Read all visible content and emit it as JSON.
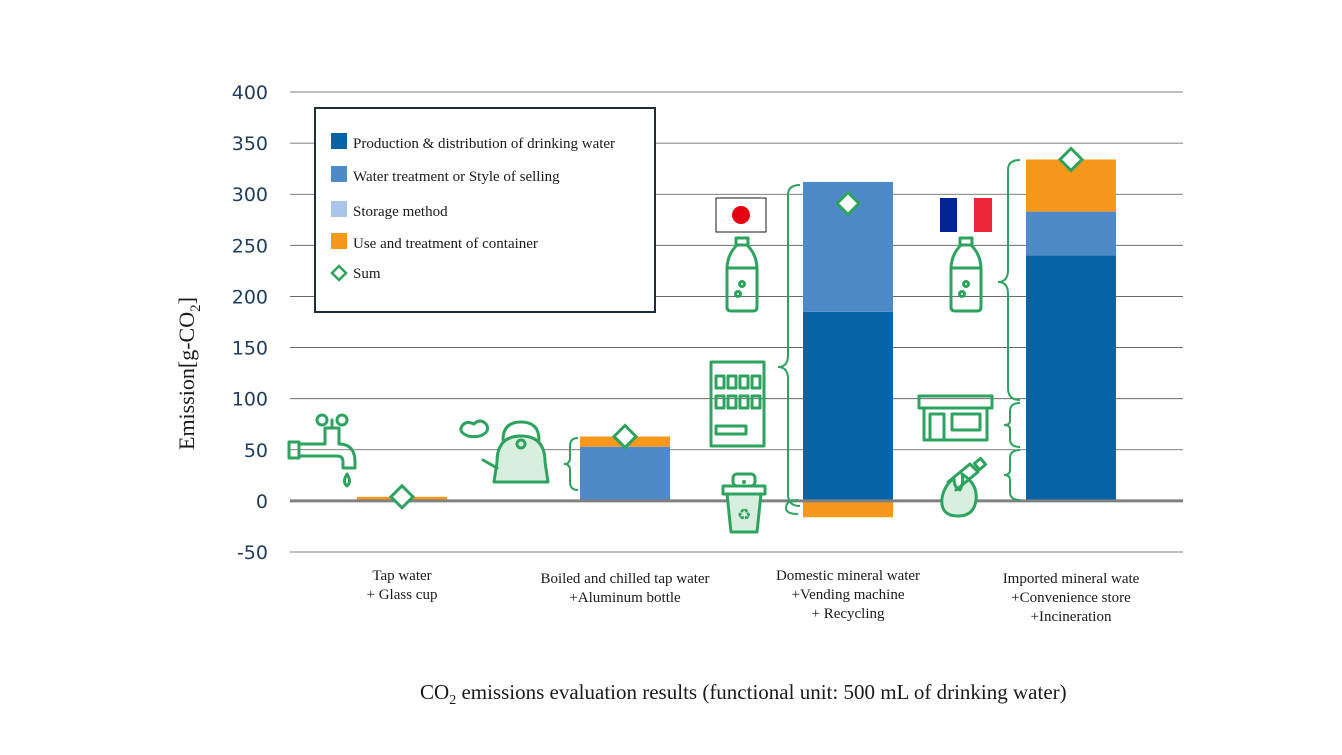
{
  "chart_data": {
    "type": "bar",
    "stacked": true,
    "categories": [
      [
        "Tap water",
        "+ Glass cup"
      ],
      [
        "Boiled and chilled tap water",
        "+Aluminum bottle"
      ],
      [
        "Domestic mineral water",
        "+Vending machine",
        "+  Recycling"
      ],
      [
        "Imported mineral wate",
        "+Convenience store",
        "+Incineration"
      ]
    ],
    "series": [
      {
        "name": "Production & distribution of drinking water",
        "color": "#0663a6",
        "values": [
          0,
          0,
          185,
          240
        ]
      },
      {
        "name": "Water treatment or Style of selling",
        "color": "#4f8ac8",
        "values": [
          0,
          53,
          127,
          43
        ]
      },
      {
        "name": "Storage method",
        "color": "#a9c6e8",
        "values": [
          0,
          0,
          0,
          0
        ]
      },
      {
        "name": "Use and treatment of container",
        "color": "#f7981d",
        "values": [
          4,
          10,
          -16,
          51
        ]
      }
    ],
    "sum": {
      "name": "Sum",
      "color": "#2ea35f",
      "values": [
        4,
        63,
        291,
        334
      ]
    },
    "ylabel": "Emission[g-CO2]",
    "ylim": [
      -50,
      400
    ],
    "yticks": [
      "400",
      "350",
      "300",
      "250",
      "200",
      "150",
      "100",
      "50",
      "0",
      "-50"
    ],
    "grid": true,
    "legend_position": "top-left",
    "caption": "CO2 emissions evaluation results (functional unit: 500 mL of drinking water)"
  },
  "icons": [
    "faucet-icon",
    "kettle-icon",
    "japan-flag-icon",
    "pet-bottle-icon",
    "vending-machine-icon",
    "recycle-bin-icon",
    "france-flag-icon",
    "convenience-store-icon",
    "incineration-icon"
  ]
}
